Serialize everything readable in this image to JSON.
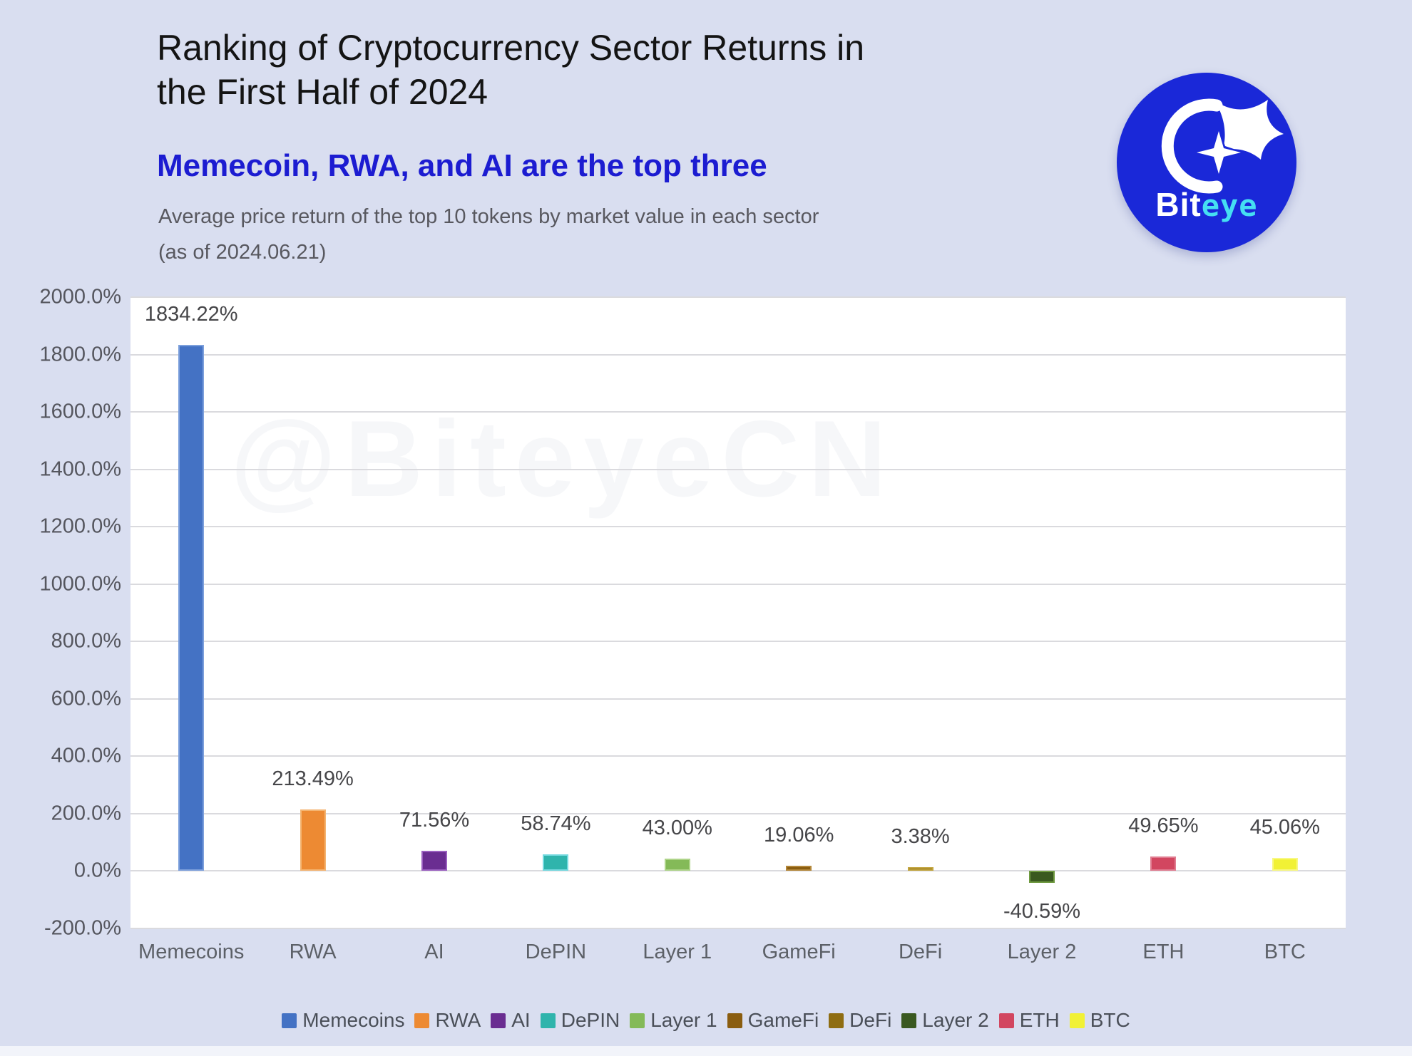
{
  "header": {
    "title_line1": "Ranking of Cryptocurrency Sector Returns in",
    "title_line2": "the First Half of 2024",
    "subtitle": "Memecoin, RWA, and AI are the top three",
    "description": "Average price return of the top 10 tokens by market value in each sector",
    "as_of": "(as of 2024.06.21)"
  },
  "logo": {
    "text_white": "Bit",
    "text_cyan": "eye",
    "bg_color": "#1a28d8",
    "accent_color": "#45dff2"
  },
  "watermark": "@BiteyeCN",
  "chart_data": {
    "type": "bar",
    "title": "Ranking of Cryptocurrency Sector Returns in the First Half of 2024",
    "subtitle": "Memecoin, RWA, and AI are the top three",
    "note": "Average price return of the top 10 tokens by market value in each sector (as of 2024.06.21)",
    "categories": [
      "Memecoins",
      "RWA",
      "AI",
      "DePIN",
      "Layer 1",
      "GameFi",
      "DeFi",
      "Layer 2",
      "ETH",
      "BTC"
    ],
    "values": [
      1834.22,
      213.49,
      71.56,
      58.74,
      43.0,
      19.06,
      3.38,
      -40.59,
      49.65,
      45.06
    ],
    "value_labels": [
      "1834.22%",
      "213.49%",
      "71.56%",
      "58.74%",
      "43.00%",
      "19.06%",
      "3.38%",
      "-40.59%",
      "49.65%",
      "45.06%"
    ],
    "colors": [
      "#4472c4",
      "#ed8a33",
      "#6a2d91",
      "#2fb4ac",
      "#84ba58",
      "#8a5d10",
      "#8f6d12",
      "#3a5920",
      "#d24660",
      "#f1f135"
    ],
    "border_colors": [
      "#7da0dc",
      "#f4b471",
      "#9a5fc0",
      "#74d9df",
      "#aed489",
      "#b3873a",
      "#c2a53f",
      "#6f9a40",
      "#e07c90",
      "#f8f883"
    ],
    "xlabel": "",
    "ylabel": "",
    "ylim": [
      -200,
      2000
    ],
    "ytick_step": 200,
    "ytick_labels": [
      "2000.0%",
      "1800.0%",
      "1600.0%",
      "1400.0%",
      "1200.0%",
      "1000.0%",
      "800.0%",
      "600.0%",
      "400.0%",
      "200.0%",
      "0.0%",
      "-200.0%"
    ],
    "grid": true,
    "legend_position": "bottom",
    "legend": [
      "Memecoins",
      "RWA",
      "AI",
      "DePIN",
      "Layer 1",
      "GameFi",
      "DeFi",
      "Layer 2",
      "ETH",
      "BTC"
    ]
  }
}
